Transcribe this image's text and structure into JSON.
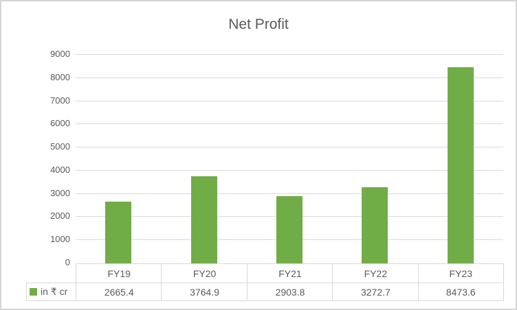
{
  "chart_data": {
    "type": "bar",
    "title": "Net Profit",
    "categories": [
      "FY19",
      "FY20",
      "FY21",
      "FY22",
      "FY23"
    ],
    "series": [
      {
        "name": "in ₹ cr",
        "values": [
          2665.4,
          3764.9,
          2903.8,
          3272.7,
          8473.6
        ],
        "values_display": [
          "2665.4",
          "3764.9",
          "2903.8",
          "3272.7",
          "8473.6"
        ]
      }
    ],
    "xlabel": "",
    "ylabel": "",
    "ylim": [
      0,
      9000
    ],
    "yticks": [
      0,
      1000,
      2000,
      3000,
      4000,
      5000,
      6000,
      7000,
      8000,
      9000
    ],
    "grid": true,
    "legend_position": "data-table-left",
    "data_table_shown": true
  },
  "colors": {
    "bar": "#70ad47",
    "title_text": "#595959",
    "axis_text": "#595959",
    "table_text": "#595959",
    "gridline": "#d9d9d9",
    "table_border": "#d9d9d9",
    "outer_border": "#d4d4d4"
  }
}
